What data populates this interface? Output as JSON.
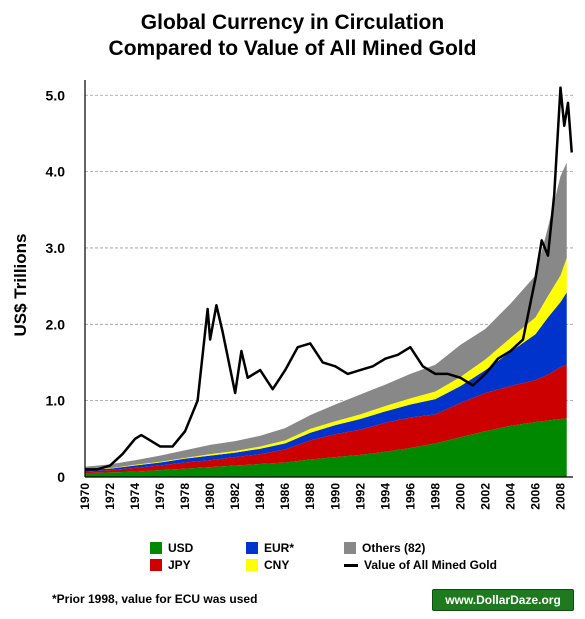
{
  "chart_data": {
    "type": "area",
    "title_line1": "Global Currency in Circulation",
    "title_line2": "Compared to Value of All Mined Gold",
    "ylabel": "US$ Trillions",
    "xlabel": "",
    "xlim": [
      1970,
      2009
    ],
    "ylim": [
      0,
      5.2
    ],
    "stacked": true,
    "grid": "horizontal dashed",
    "y_ticks": [
      "0",
      "1.0",
      "2.0",
      "3.0",
      "4.0",
      "5.0"
    ],
    "x_ticks": [
      "1970",
      "1972",
      "1974",
      "1976",
      "1978",
      "1980",
      "1982",
      "1984",
      "1986",
      "1988",
      "1990",
      "1992",
      "1994",
      "1996",
      "1998",
      "2000",
      "2002",
      "2004",
      "2006",
      "2008"
    ],
    "x": [
      1970,
      1972,
      1974,
      1976,
      1978,
      1980,
      1982,
      1984,
      1986,
      1988,
      1990,
      1992,
      1994,
      1996,
      1998,
      2000,
      2002,
      2004,
      2006,
      2007,
      2008,
      2008.5
    ],
    "series": [
      {
        "name": "USD",
        "color": "#008800",
        "values": [
          0.05,
          0.06,
          0.07,
          0.09,
          0.11,
          0.13,
          0.15,
          0.17,
          0.19,
          0.23,
          0.26,
          0.29,
          0.33,
          0.38,
          0.44,
          0.52,
          0.6,
          0.67,
          0.72,
          0.74,
          0.76,
          0.77
        ]
      },
      {
        "name": "JPY",
        "color": "#cc0000",
        "values": [
          0.02,
          0.03,
          0.05,
          0.06,
          0.08,
          0.09,
          0.11,
          0.13,
          0.17,
          0.25,
          0.3,
          0.33,
          0.38,
          0.4,
          0.38,
          0.45,
          0.5,
          0.52,
          0.55,
          0.6,
          0.68,
          0.7
        ]
      },
      {
        "name": "EUR*",
        "color": "#0033cc",
        "values": [
          0.02,
          0.02,
          0.03,
          0.04,
          0.05,
          0.06,
          0.06,
          0.07,
          0.08,
          0.1,
          0.12,
          0.14,
          0.15,
          0.17,
          0.2,
          0.22,
          0.3,
          0.45,
          0.6,
          0.75,
          0.85,
          0.95
        ]
      },
      {
        "name": "CNY",
        "color": "#ffff00",
        "values": [
          0.005,
          0.005,
          0.01,
          0.01,
          0.01,
          0.02,
          0.02,
          0.03,
          0.04,
          0.05,
          0.05,
          0.06,
          0.07,
          0.08,
          0.1,
          0.12,
          0.14,
          0.18,
          0.22,
          0.28,
          0.35,
          0.45
        ]
      },
      {
        "name": "Others (82)",
        "color": "#888888",
        "values": [
          0.04,
          0.05,
          0.06,
          0.08,
          0.1,
          0.12,
          0.13,
          0.14,
          0.16,
          0.18,
          0.22,
          0.26,
          0.28,
          0.32,
          0.35,
          0.42,
          0.4,
          0.45,
          0.55,
          0.9,
          1.3,
          1.25
        ]
      }
    ],
    "gold_series": {
      "name": "Value of All Mined Gold",
      "color": "#000000",
      "x": [
        1970,
        1971,
        1972,
        1973,
        1973.5,
        1974,
        1974.5,
        1975,
        1976,
        1977,
        1978,
        1979,
        1979.8,
        1980,
        1980.5,
        1981,
        1982,
        1982.5,
        1983,
        1984,
        1985,
        1986,
        1987,
        1988,
        1989,
        1990,
        1991,
        1992,
        1993,
        1994,
        1995,
        1996,
        1997,
        1998,
        1999,
        2000,
        2001,
        2002,
        2003,
        2004,
        2005,
        2006,
        2006.5,
        2007,
        2007.5,
        2008,
        2008.3,
        2008.6,
        2008.9
      ],
      "values": [
        0.1,
        0.1,
        0.15,
        0.3,
        0.4,
        0.5,
        0.55,
        0.5,
        0.4,
        0.4,
        0.6,
        1.0,
        2.2,
        1.8,
        2.25,
        1.9,
        1.1,
        1.65,
        1.3,
        1.4,
        1.15,
        1.4,
        1.7,
        1.75,
        1.5,
        1.45,
        1.35,
        1.4,
        1.45,
        1.55,
        1.6,
        1.7,
        1.45,
        1.35,
        1.35,
        1.3,
        1.2,
        1.35,
        1.55,
        1.65,
        1.8,
        2.6,
        3.1,
        2.9,
        3.7,
        5.1,
        4.6,
        4.9,
        4.25
      ]
    },
    "legend": [
      {
        "label": "USD",
        "color": "#008800",
        "kind": "box"
      },
      {
        "label": "EUR*",
        "color": "#0033cc",
        "kind": "box"
      },
      {
        "label": "Others (82)",
        "color": "#888888",
        "kind": "box"
      },
      {
        "label": "JPY",
        "color": "#cc0000",
        "kind": "box"
      },
      {
        "label": "CNY",
        "color": "#ffff00",
        "kind": "box"
      },
      {
        "label": "Value of All Mined Gold",
        "color": "#000000",
        "kind": "line"
      }
    ],
    "legend_placement": "bottom",
    "footnote": "*Prior 1998, value for ECU was used",
    "watermark": "www.DollarDaze.org"
  }
}
